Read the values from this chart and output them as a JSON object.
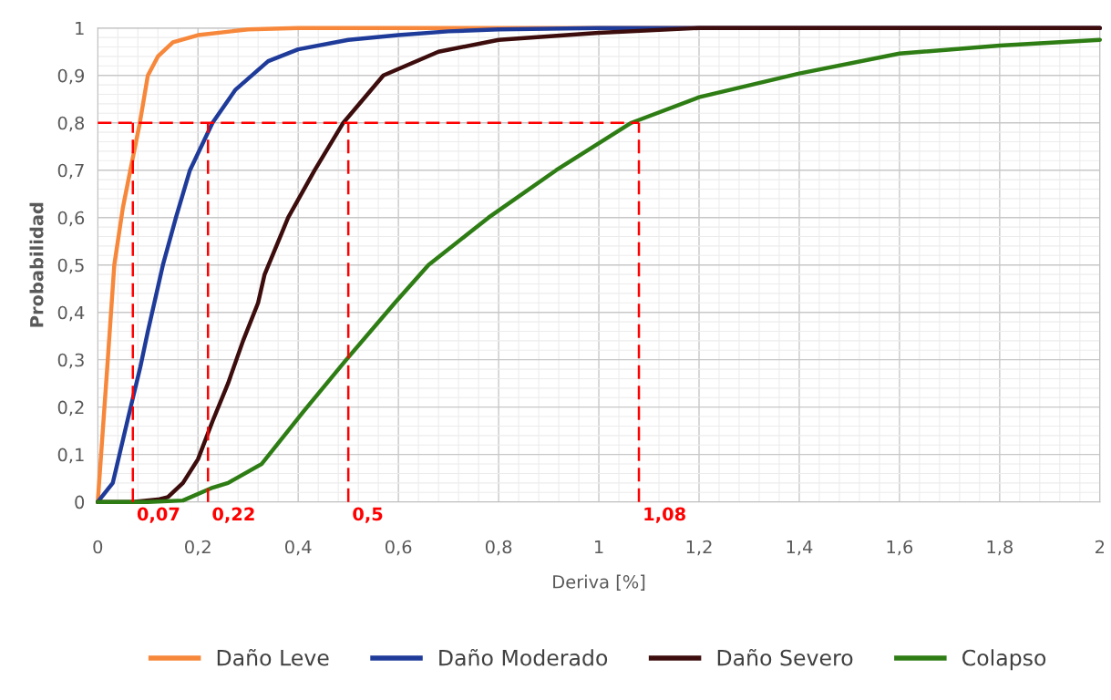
{
  "chart_data": {
    "type": "line",
    "xlabel": "Deriva [%]",
    "ylabel": "Probabilidad",
    "xlim": [
      0,
      2
    ],
    "ylim": [
      0,
      1
    ],
    "xticks": [
      0,
      {
        "value": 0.2,
        "label": "0,2"
      },
      {
        "value": 0.4,
        "label": "0,4"
      },
      {
        "value": 0.6,
        "label": "0,6"
      },
      {
        "value": 0.8,
        "label": "0,8"
      },
      1,
      {
        "value": 1.2,
        "label": "1,2"
      },
      {
        "value": 1.4,
        "label": "1,4"
      },
      {
        "value": 1.6,
        "label": "1,6"
      },
      {
        "value": 1.8,
        "label": "1,8"
      },
      2
    ],
    "yticks": [
      0,
      {
        "value": 0.1,
        "label": "0,1"
      },
      {
        "value": 0.2,
        "label": "0,2"
      },
      {
        "value": 0.3,
        "label": "0,3"
      },
      {
        "value": 0.4,
        "label": "0,4"
      },
      {
        "value": 0.5,
        "label": "0,5"
      },
      {
        "value": 0.6,
        "label": "0,6"
      },
      {
        "value": 0.7,
        "label": "0,7"
      },
      {
        "value": 0.8,
        "label": "0,8"
      },
      {
        "value": 0.9,
        "label": "0,9"
      },
      1
    ],
    "grid": true,
    "legend": "bottom",
    "marker": "none",
    "series": [
      {
        "name": "Daño Leve",
        "color": "#f7873a",
        "x": [
          0,
          0.01,
          0.02,
          0.033,
          0.05,
          0.065,
          0.084,
          0.1,
          0.12,
          0.15,
          0.2,
          0.3,
          0.4,
          2
        ],
        "values": [
          0,
          0.15,
          0.3,
          0.5,
          0.62,
          0.7,
          0.8,
          0.9,
          0.94,
          0.97,
          0.985,
          0.997,
          1,
          1
        ]
      },
      {
        "name": "Daño Moderado",
        "color": "#1f3b9a",
        "x": [
          0,
          0.03,
          0.06,
          0.085,
          0.1,
          0.13,
          0.156,
          0.184,
          0.229,
          0.275,
          0.34,
          0.4,
          0.5,
          0.6,
          0.7,
          0.8,
          1.0,
          2
        ],
        "values": [
          0,
          0.04,
          0.175,
          0.285,
          0.36,
          0.5,
          0.6,
          0.7,
          0.8,
          0.87,
          0.93,
          0.955,
          0.975,
          0.985,
          0.993,
          0.997,
          1,
          1
        ]
      },
      {
        "name": "Daño Severo",
        "color": "#3d0c0c",
        "x": [
          0,
          0.07,
          0.12,
          0.14,
          0.17,
          0.2,
          0.229,
          0.26,
          0.29,
          0.32,
          0.333,
          0.38,
          0.433,
          0.49,
          0.57,
          0.68,
          0.8,
          1.0,
          1.2,
          2
        ],
        "values": [
          0,
          0,
          0.005,
          0.01,
          0.04,
          0.09,
          0.17,
          0.25,
          0.34,
          0.42,
          0.48,
          0.6,
          0.7,
          0.8,
          0.9,
          0.95,
          0.975,
          0.99,
          1,
          1
        ]
      },
      {
        "name": "Colapso",
        "color": "#2e7d14",
        "x": [
          0,
          0.1,
          0.17,
          0.229,
          0.26,
          0.327,
          0.41,
          0.496,
          0.593,
          0.66,
          0.78,
          0.915,
          1.065,
          1.2,
          1.4,
          1.6,
          1.8,
          2
        ],
        "values": [
          0,
          0,
          0.003,
          0.03,
          0.04,
          0.08,
          0.19,
          0.3,
          0.42,
          0.5,
          0.6,
          0.7,
          0.8,
          0.854,
          0.904,
          0.946,
          0.963,
          0.975
        ]
      },
      {
        "color": "#ff0000",
        "line_style": "dashed",
        "x": [
          0,
          1.08
        ],
        "values": [
          0.8,
          0.8
        ]
      },
      {
        "color": "#ff0000",
        "line_style": "dashed",
        "x": [
          0.07,
          0.07
        ],
        "values": [
          0,
          0.8
        ]
      },
      {
        "color": "#ff0000",
        "line_style": "dashed",
        "x": [
          0.22,
          0.22
        ],
        "values": [
          0,
          0.8
        ]
      },
      {
        "color": "#ff0000",
        "line_style": "dashed",
        "x": [
          0.5,
          0.5
        ],
        "values": [
          0,
          0.8
        ]
      },
      {
        "color": "#ff0000",
        "line_style": "dashed",
        "x": [
          1.08,
          1.08
        ],
        "values": [
          0,
          0.8
        ]
      }
    ],
    "annotations": [
      {
        "text": "0,07",
        "x": 0.07,
        "y": 0
      },
      {
        "text": "0,22",
        "x": 0.22,
        "y": 0
      },
      {
        "text": "0,5",
        "x": 0.5,
        "y": 0
      },
      {
        "text": "1,08",
        "x": 1.08,
        "y": 0
      }
    ]
  }
}
